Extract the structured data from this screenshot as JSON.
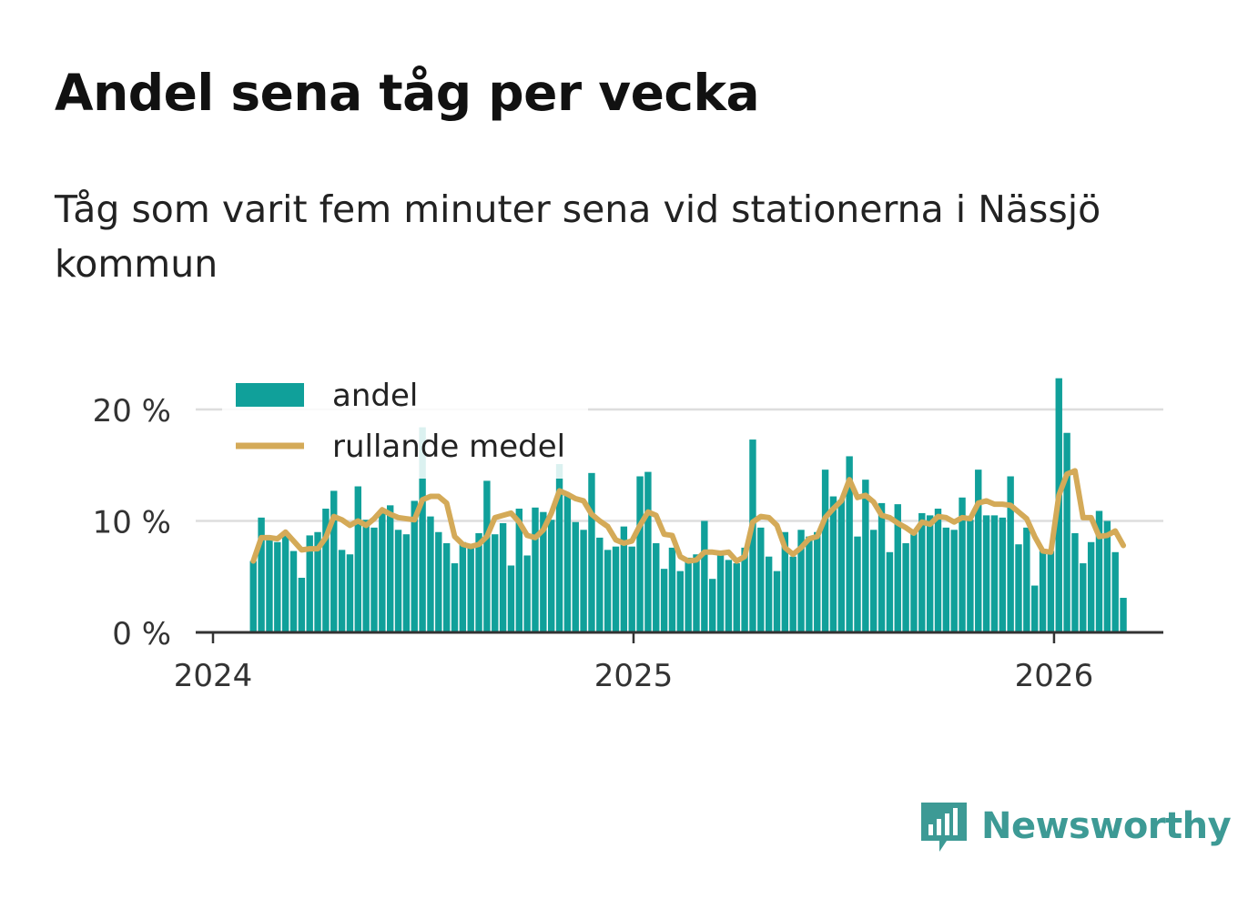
{
  "title": "Andel sena tåg per vecka",
  "subtitle": "Tåg som varit fem minuter sena vid stationerna i Nässjö kommun",
  "brand": {
    "name": "Newsworthy",
    "color": "#3d9a95"
  },
  "colors": {
    "bar": "#10a09a",
    "line": "#d4aa58",
    "grid": "#dddddd",
    "axis": "#333333"
  },
  "chart_data": {
    "type": "bar",
    "title": "Andel sena tåg per vecka",
    "xlabel": "",
    "ylabel": "",
    "ylim": [
      0,
      23
    ],
    "yticks": [
      0,
      10,
      20
    ],
    "ytick_labels": [
      "0 %",
      "10 %",
      "20 %"
    ],
    "x_start_week_offset": 5,
    "weeks_per_year": 52.2,
    "xticks": [
      0,
      52.2,
      104.4
    ],
    "xtick_labels": [
      "2024",
      "2025",
      "2026"
    ],
    "legend": {
      "position": "top-left",
      "entries": [
        "andel",
        "rullande medel"
      ]
    },
    "grid": "horizontal",
    "series": [
      {
        "name": "andel",
        "kind": "bar",
        "values": [
          6.4,
          10.3,
          8.6,
          8.1,
          8.8,
          7.3,
          4.9,
          8.7,
          9.0,
          11.1,
          12.7,
          7.4,
          7.0,
          13.1,
          10.1,
          9.4,
          10.9,
          11.4,
          9.2,
          8.8,
          11.8,
          18.4,
          10.4,
          9.0,
          8.0,
          6.2,
          8.1,
          7.9,
          8.9,
          13.6,
          8.8,
          9.8,
          6.0,
          11.1,
          6.9,
          11.2,
          10.8,
          10.1,
          15.1,
          12.3,
          9.9,
          9.2,
          14.3,
          8.5,
          7.4,
          7.7,
          9.5,
          7.7,
          14.0,
          14.4,
          8.0,
          5.7,
          7.6,
          5.5,
          6.7,
          7.0,
          10.0,
          4.8,
          7.0,
          6.5,
          6.2,
          7.6,
          17.3,
          9.4,
          6.8,
          5.5,
          9.0,
          6.8,
          9.2,
          8.6,
          9.0,
          14.6,
          12.2,
          11.9,
          15.8,
          8.6,
          13.7,
          9.2,
          11.6,
          7.2,
          11.5,
          8.0,
          9.2,
          10.7,
          10.5,
          11.1,
          9.4,
          9.2,
          12.1,
          10.1,
          14.6,
          10.5,
          10.5,
          10.3,
          14.0,
          7.9,
          9.4,
          4.2,
          7.3,
          7.3,
          22.8,
          17.9,
          8.9,
          6.2,
          8.1,
          10.9,
          10.0,
          7.2,
          3.1
        ]
      },
      {
        "name": "rullande medel",
        "kind": "line",
        "values": [
          6.4,
          8.5,
          8.5,
          8.4,
          9.0,
          8.2,
          7.4,
          7.5,
          7.5,
          8.5,
          10.4,
          10.1,
          9.6,
          10.0,
          9.6,
          10.2,
          11.0,
          10.6,
          10.3,
          10.2,
          10.1,
          11.9,
          12.2,
          12.2,
          11.6,
          8.6,
          7.9,
          7.7,
          7.9,
          8.6,
          10.3,
          10.5,
          10.7,
          9.9,
          8.7,
          8.5,
          9.2,
          10.7,
          12.7,
          12.4,
          12.0,
          11.8,
          10.6,
          10.0,
          9.5,
          8.3,
          8.0,
          8.2,
          9.6,
          10.8,
          10.5,
          8.8,
          8.7,
          6.8,
          6.4,
          6.5,
          7.2,
          7.2,
          7.1,
          7.2,
          6.4,
          6.8,
          9.9,
          10.4,
          10.3,
          9.6,
          7.6,
          7.0,
          7.6,
          8.4,
          8.6,
          10.3,
          11.1,
          11.8,
          13.7,
          12.1,
          12.3,
          11.7,
          10.5,
          10.3,
          9.8,
          9.4,
          8.9,
          9.9,
          9.7,
          10.4,
          10.3,
          9.9,
          10.3,
          10.2,
          11.6,
          11.8,
          11.5,
          11.5,
          11.4,
          10.8,
          10.2,
          8.6,
          7.3,
          7.2,
          12.3,
          14.2,
          14.5,
          10.3,
          10.3,
          8.6,
          8.7,
          9.1,
          7.8
        ]
      }
    ]
  }
}
